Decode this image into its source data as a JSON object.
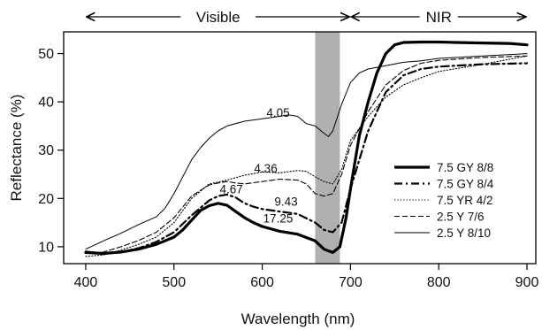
{
  "chart_data": {
    "type": "line",
    "xlabel": "Wavelength (nm)",
    "ylabel": "Reflectance (%)",
    "xlim": [
      375,
      910
    ],
    "ylim": [
      6.5,
      54.5
    ],
    "xticks": [
      400,
      500,
      600,
      700,
      800,
      900
    ],
    "yticks": [
      10,
      20,
      30,
      40,
      50
    ],
    "grid": false,
    "legend_position": "center-right",
    "shaded_band": {
      "x_from": 660,
      "x_to": 688,
      "color": "#b0b0b0"
    },
    "regions": [
      {
        "label": "Visible",
        "x_from": 400,
        "x_to": 700
      },
      {
        "label": "NIR",
        "x_from": 700,
        "x_to": 900
      }
    ],
    "annotations": [
      {
        "text": "4.05",
        "x": 618,
        "y": 37.8
      },
      {
        "text": "4.36",
        "x": 604,
        "y": 26.3
      },
      {
        "text": "4.67",
        "x": 565,
        "y": 22.0
      },
      {
        "text": "9.43",
        "x": 627,
        "y": 19.4
      },
      {
        "text": "17.25",
        "x": 618,
        "y": 15.9
      }
    ],
    "series": [
      {
        "name": "7.5 GY 8/8",
        "color": "#000000",
        "width": 3.2,
        "dash": "",
        "x": [
          400,
          420,
          440,
          460,
          480,
          500,
          510,
          520,
          530,
          540,
          550,
          560,
          570,
          580,
          590,
          600,
          620,
          640,
          660,
          670,
          680,
          688,
          695,
          700,
          710,
          720,
          730,
          740,
          750,
          760,
          780,
          800,
          820,
          850,
          880,
          900
        ],
        "y": [
          8.8,
          8.6,
          8.9,
          9.5,
          10.5,
          12.0,
          13.5,
          15.5,
          17.5,
          18.5,
          19.0,
          18.6,
          17.3,
          16.0,
          15.0,
          14.2,
          13.2,
          12.6,
          11.2,
          9.5,
          8.8,
          10.0,
          16.0,
          22.0,
          33.0,
          40.0,
          46.0,
          50.0,
          51.8,
          52.3,
          52.4,
          52.4,
          52.3,
          52.2,
          52.1,
          51.8
        ]
      },
      {
        "name": "7.5 GY 8/4",
        "color": "#000000",
        "width": 2.2,
        "dash": "9,4,2,4",
        "x": [
          400,
          420,
          440,
          460,
          480,
          500,
          520,
          540,
          550,
          560,
          570,
          580,
          590,
          600,
          620,
          640,
          660,
          670,
          680,
          690,
          700,
          720,
          740,
          760,
          780,
          800,
          850,
          900
        ],
        "y": [
          9.0,
          8.6,
          8.9,
          9.7,
          11.0,
          13.0,
          16.5,
          19.6,
          20.5,
          20.8,
          20.2,
          19.0,
          18.3,
          17.8,
          17.3,
          16.8,
          15.0,
          13.5,
          13.0,
          15.0,
          22.0,
          34.0,
          42.0,
          45.5,
          46.8,
          47.3,
          47.8,
          48.0
        ]
      },
      {
        "name": "7.5 YR 4/2",
        "color": "#000000",
        "width": 1.1,
        "dash": "1.2,2.2",
        "x": [
          400,
          420,
          440,
          460,
          480,
          500,
          520,
          540,
          550,
          560,
          570,
          580,
          600,
          620,
          640,
          650,
          660,
          670,
          680,
          690,
          700,
          720,
          740,
          760,
          780,
          800,
          850,
          900
        ],
        "y": [
          8.0,
          8.3,
          9.3,
          10.5,
          12.0,
          15.0,
          20.0,
          23.0,
          23.4,
          23.8,
          24.3,
          24.8,
          25.5,
          25.3,
          25.8,
          25.6,
          24.5,
          23.5,
          23.0,
          26.0,
          32.0,
          37.0,
          41.0,
          43.5,
          45.0,
          46.3,
          47.8,
          49.5
        ]
      },
      {
        "name": "2.5 Y 7/6",
        "color": "#000000",
        "width": 1.1,
        "dash": "6,3",
        "x": [
          400,
          420,
          440,
          460,
          480,
          500,
          520,
          540,
          550,
          560,
          570,
          580,
          600,
          620,
          640,
          650,
          660,
          670,
          680,
          690,
          700,
          720,
          740,
          760,
          780,
          800,
          850,
          900
        ],
        "y": [
          8.6,
          8.9,
          10.0,
          11.3,
          13.0,
          16.0,
          20.5,
          22.8,
          23.2,
          23.5,
          23.2,
          23.0,
          23.5,
          24.0,
          23.8,
          23.0,
          21.0,
          20.5,
          21.0,
          25.0,
          31.0,
          38.0,
          43.5,
          46.5,
          48.0,
          48.6,
          49.2,
          49.5
        ]
      },
      {
        "name": "2.5 Y 8/10",
        "color": "#000000",
        "width": 1.0,
        "dash": "",
        "x": [
          400,
          420,
          440,
          460,
          480,
          490,
          500,
          510,
          520,
          530,
          540,
          550,
          560,
          580,
          600,
          620,
          630,
          640,
          650,
          660,
          670,
          675,
          680,
          690,
          700,
          710,
          720,
          740,
          760,
          780,
          800,
          850,
          900
        ],
        "y": [
          9.5,
          11.2,
          12.8,
          14.6,
          16.2,
          18.0,
          21.0,
          24.5,
          28.0,
          30.5,
          32.5,
          34.0,
          35.0,
          36.0,
          36.5,
          37.0,
          37.3,
          37.0,
          35.5,
          35.0,
          33.5,
          32.8,
          34.0,
          39.5,
          44.0,
          46.0,
          46.8,
          47.5,
          48.2,
          48.5,
          49.0,
          49.5,
          50.0
        ]
      }
    ]
  }
}
